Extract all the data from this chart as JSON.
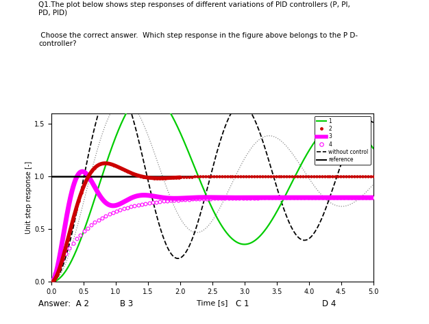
{
  "title_text": "Q1.The plot below shows step responses of different variations of PID controllers (P, PI,\nPD, PID)",
  "question_text": " Choose the correct answer.  Which step response in the figure above belongs to the P D-\ncontroller?",
  "xlabel": "Time [s]",
  "ylabel": "Unit step response [-]",
  "xlim": [
    0,
    5
  ],
  "ylim": [
    0,
    1.6
  ],
  "yticks": [
    0,
    0.5,
    1.0,
    1.5
  ],
  "xticks": [
    0,
    0.5,
    1.0,
    1.5,
    2.0,
    2.5,
    3.0,
    3.5,
    4.0,
    4.5,
    5.0
  ],
  "answer_text_a": "Answer:  A 2",
  "answer_text_b": "B 3",
  "answer_text_c": "C 1",
  "answer_text_d": "D 4",
  "green_color": "#00cc00",
  "red_color": "#cc0000",
  "magenta_color": "#ff00ff",
  "black_color": "#000000",
  "gray_color": "#888888"
}
